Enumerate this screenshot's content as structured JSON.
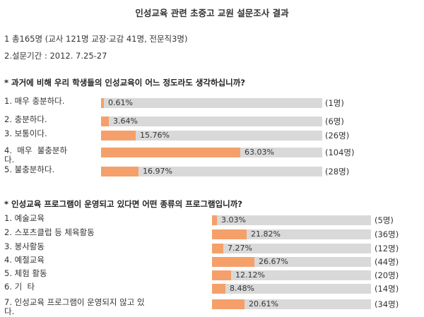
{
  "title": "인성교육 관련 초중고 교원 설문조사 결과",
  "info": [
    "1 총165명 (교사 121명 교장·교감 41명, 전문직3명)",
    "2.설문기간 : 2012. 7.25-27"
  ],
  "colors": {
    "bar_fill": "#f5a06a",
    "bar_track": "#d9d9d9"
  },
  "chart_data": [
    {
      "type": "bar",
      "title": "* 과거에 비해 우리 학생들의 인성교육이 어느 정도라도 생각하십니까?",
      "ylim": [
        0,
        100
      ],
      "bars": [
        {
          "label": "1. 매우 충분하다.",
          "value": 0.61,
          "value_label": "0.61%",
          "count": "(1명)"
        },
        {
          "label": "2. 충분하다.",
          "value": 3.64,
          "value_label": "3.64%",
          "count": "(6명)"
        },
        {
          "label": "3. 보통이다.",
          "value": 15.76,
          "value_label": "15.76%",
          "count": "(26명)"
        },
        {
          "label": "4.  매우  불충분하\n다.",
          "value": 63.03,
          "value_label": "63.03%",
          "count": "(104명)"
        },
        {
          "label": "5. 불충분하다.",
          "value": 16.97,
          "value_label": "16.97%",
          "count": "(28명)"
        }
      ]
    },
    {
      "type": "bar",
      "title": "* 인성교육 프로그램이 운영되고 있다면 어떤 종류의 프로그램입니까?",
      "ylim": [
        0,
        100
      ],
      "bars": [
        {
          "label": "1. 예술교육",
          "value": 3.03,
          "value_label": "3.03%",
          "count": "(5명)"
        },
        {
          "label": "2. 스포츠클럽 등 체육활동",
          "value": 21.82,
          "value_label": "21.82%",
          "count": "(36명)"
        },
        {
          "label": "3. 봉사활동",
          "value": 7.27,
          "value_label": "7.27%",
          "count": "(12명)"
        },
        {
          "label": "4. 예절교육",
          "value": 26.67,
          "value_label": "26.67%",
          "count": "(44명)"
        },
        {
          "label": "5. 체험 활동",
          "value": 12.12,
          "value_label": "12.12%",
          "count": "(20명)"
        },
        {
          "label": "6. 기  타",
          "value": 8.48,
          "value_label": "8.48%",
          "count": "(14명)"
        },
        {
          "label": "7. 인성교육 프로그램이 운영되지 않고 있\n다.",
          "value": 20.61,
          "value_label": "20.61%",
          "count": "(34명)"
        }
      ]
    }
  ]
}
